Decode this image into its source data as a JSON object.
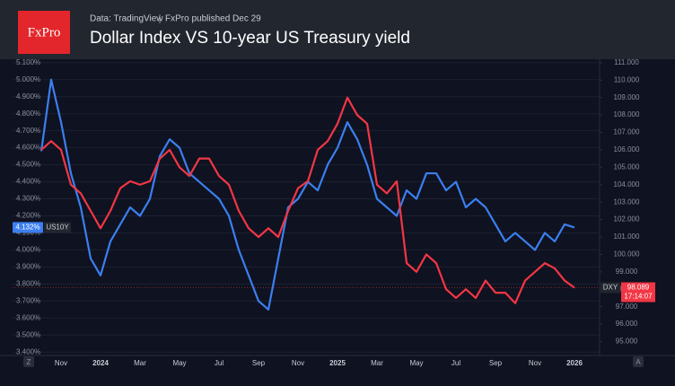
{
  "logo": "FxPro",
  "source": "Data: TradingView",
  "publisher": "FxPro published Dec 29",
  "chart_data": {
    "type": "line",
    "title": "Dollar Index VS 10-year US Treasury yield",
    "categories": [
      null,
      null,
      "Nov",
      null,
      null,
      null,
      "2024",
      null,
      null,
      null,
      "Mar",
      null,
      null,
      null,
      "May",
      null,
      null,
      null,
      "Jul",
      null,
      null,
      null,
      "Sep",
      null,
      null,
      null,
      "Nov",
      null,
      null,
      null,
      "2025",
      null,
      null,
      null,
      "Mar",
      null,
      null,
      null,
      "May",
      null,
      null,
      null,
      "Jul",
      null,
      null,
      null,
      "Sep",
      null,
      null,
      null,
      "Nov",
      null,
      null,
      null,
      "2026"
    ],
    "series": [
      {
        "name": "US10Y",
        "color": "#3b7ff0",
        "axis": "y",
        "values": [
          4.58,
          5.0,
          4.75,
          4.45,
          4.25,
          3.95,
          3.85,
          4.05,
          4.15,
          4.25,
          4.2,
          4.3,
          4.55,
          4.65,
          4.6,
          4.45,
          4.4,
          4.35,
          4.3,
          4.2,
          4.0,
          3.85,
          3.7,
          3.65,
          3.95,
          4.25,
          4.3,
          4.4,
          4.35,
          4.5,
          4.6,
          4.75,
          4.65,
          4.5,
          4.3,
          4.25,
          4.2,
          4.35,
          4.3,
          4.45,
          4.45,
          4.35,
          4.4,
          4.25,
          4.3,
          4.25,
          4.15,
          4.05,
          4.1,
          4.05,
          4.0,
          4.1,
          4.05,
          4.15,
          4.132
        ],
        "badge": {
          "value": 4.132,
          "label": "4.132%"
        }
      },
      {
        "name": "DXY",
        "color": "#f23645",
        "axis": "y2",
        "values": [
          106.0,
          106.5,
          106.0,
          104.0,
          103.5,
          102.5,
          101.5,
          102.5,
          103.8,
          104.2,
          104.0,
          104.2,
          105.5,
          106.0,
          105.0,
          104.5,
          105.5,
          105.5,
          104.5,
          104.0,
          102.5,
          101.5,
          101.0,
          101.5,
          101.0,
          102.5,
          103.8,
          104.2,
          106.0,
          106.5,
          107.5,
          109.0,
          108.0,
          107.5,
          104.0,
          103.5,
          104.2,
          99.5,
          99.0,
          100.0,
          99.5,
          98.0,
          97.5,
          98.0,
          97.5,
          98.5,
          97.8,
          97.8,
          97.2,
          98.5,
          99.0,
          99.5,
          99.2,
          98.5,
          98.089
        ],
        "badge": {
          "value": 98.089,
          "label": "98.089"
        },
        "countdown": "17:14:07"
      }
    ],
    "ylim": [
      3.38,
      5.12
    ],
    "yticks": [
      {
        "value": 3.4,
        "label": "3.400%"
      },
      {
        "value": 3.5,
        "label": "3.500%"
      },
      {
        "value": 3.6,
        "label": "3.600%"
      },
      {
        "value": 3.7,
        "label": "3.700%"
      },
      {
        "value": 3.8,
        "label": "3.800%"
      },
      {
        "value": 3.9,
        "label": "3.900%"
      },
      {
        "value": 4.0,
        "label": "4.000%"
      },
      {
        "value": 4.1,
        "label": "4.100%"
      },
      {
        "value": 4.2,
        "label": "4.200%"
      },
      {
        "value": 4.3,
        "label": "4.300%"
      },
      {
        "value": 4.4,
        "label": "4.400%"
      },
      {
        "value": 4.5,
        "label": "4.500%"
      },
      {
        "value": 4.6,
        "label": "4.600%"
      },
      {
        "value": 4.7,
        "label": "4.700%"
      },
      {
        "value": 4.8,
        "label": "4.800%"
      },
      {
        "value": 4.9,
        "label": "4.900%"
      },
      {
        "value": 5.0,
        "label": "5.000%"
      },
      {
        "value": 5.1,
        "label": "5.100%"
      }
    ],
    "y2lim": [
      94.2,
      111.2
    ],
    "y2ticks": [
      {
        "value": 95,
        "label": "95.000"
      },
      {
        "value": 96,
        "label": "96.000"
      },
      {
        "value": 97,
        "label": "97.000"
      },
      {
        "value": 98,
        "label": "98.000"
      },
      {
        "value": 99,
        "label": "99.000"
      },
      {
        "value": 100,
        "label": "100.000"
      },
      {
        "value": 101,
        "label": "101.000"
      },
      {
        "value": 102,
        "label": "102.000"
      },
      {
        "value": 103,
        "label": "103.000"
      },
      {
        "value": 104,
        "label": "104.000"
      },
      {
        "value": 105,
        "label": "105.000"
      },
      {
        "value": 106,
        "label": "106.000"
      },
      {
        "value": 107,
        "label": "107.000"
      },
      {
        "value": 108,
        "label": "108.000"
      },
      {
        "value": 109,
        "label": "109.000"
      },
      {
        "value": 110,
        "label": "110.000"
      },
      {
        "value": 111,
        "label": "111.000"
      }
    ],
    "grid": true,
    "left_button": "Z",
    "right_button": "A"
  }
}
